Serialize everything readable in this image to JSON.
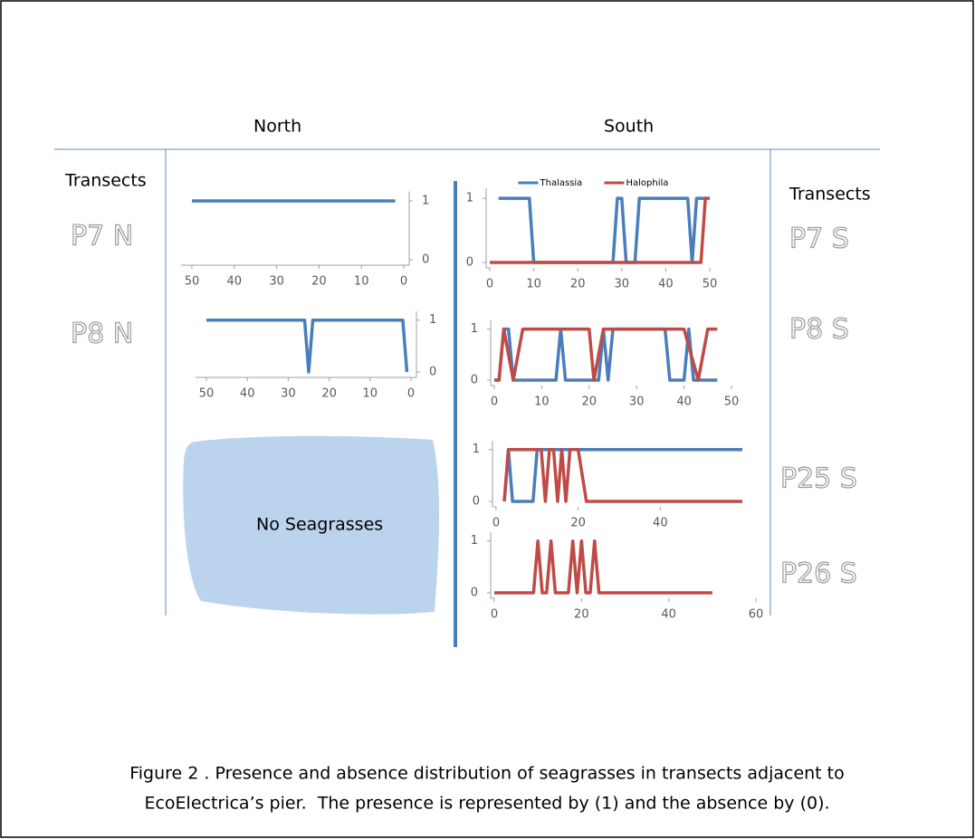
{
  "headers": {
    "north": "North",
    "south": "South"
  },
  "transects": [
    "Transects",
    "Transects"
  ],
  "no_data_label": "No Seagrasses",
  "caption": [
    "Figure 2 . Presence and absence distribution of seagrasses in transects adjacent to",
    "EcoElectrica’s pier.  The presence is represented by (1) and the absence by (0)."
  ],
  "chart_data": [
    {
      "type": "line",
      "title": "P7 N",
      "xlim": [
        50,
        0
      ],
      "xticks": [
        50,
        40,
        30,
        20,
        10,
        0
      ],
      "ylim": [
        0,
        1.1
      ],
      "yticks": [
        0,
        1
      ],
      "series": [
        {
          "color": "#4a7ebb",
          "x": [
            50,
            2
          ],
          "values": [
            1,
            1
          ]
        }
      ]
    },
    {
      "type": "line",
      "title": "P8 N",
      "xlim": [
        50,
        0
      ],
      "xticks": [
        50,
        40,
        30,
        20,
        10,
        0
      ],
      "ylim": [
        0,
        1.1
      ],
      "yticks": [
        0,
        1
      ],
      "series": [
        {
          "color": "#4a7ebb",
          "x": [
            50,
            26,
            25,
            24,
            2,
            1
          ],
          "values": [
            1,
            1,
            0,
            1,
            1,
            0
          ]
        }
      ]
    },
    {
      "type": "line",
      "title": "P7 S",
      "xlim": [
        0,
        50
      ],
      "xticks": [
        0,
        10,
        20,
        30,
        40,
        50
      ],
      "ylim": [
        0,
        1.1
      ],
      "yticks": [
        0,
        1
      ],
      "legend": "top",
      "series": [
        {
          "name": "Thalassia",
          "color": "#4a7ebb",
          "x": [
            2,
            9,
            10,
            28,
            29,
            30,
            31,
            33,
            34,
            45,
            46,
            47,
            49
          ],
          "values": [
            1,
            1,
            0,
            0,
            1,
            1,
            0,
            0,
            1,
            1,
            0,
            1,
            1
          ]
        },
        {
          "name": "Halophila",
          "color": "#be4b48",
          "x": [
            0,
            48,
            49,
            50
          ],
          "values": [
            0,
            0,
            1,
            1
          ]
        }
      ]
    },
    {
      "type": "line",
      "title": "P8 S",
      "xlim": [
        0,
        50
      ],
      "xticks": [
        0,
        10,
        20,
        30,
        40,
        50
      ],
      "ylim": [
        0,
        1.1
      ],
      "yticks": [
        0,
        1
      ],
      "series": [
        {
          "color": "#4a7ebb",
          "x": [
            0,
            1,
            2,
            3,
            4,
            13,
            14,
            15,
            22,
            23,
            24,
            25,
            36,
            37,
            40,
            41,
            42,
            47
          ],
          "values": [
            0,
            0,
            1,
            1,
            0,
            0,
            1,
            0,
            0,
            1,
            0,
            1,
            1,
            0,
            0,
            1,
            0,
            0
          ]
        },
        {
          "color": "#be4b48",
          "x": [
            0,
            1,
            2,
            4,
            6,
            20,
            21,
            23,
            40,
            43,
            45,
            47
          ],
          "values": [
            0,
            0,
            1,
            0,
            1,
            1,
            0,
            1,
            1,
            0,
            1,
            1
          ]
        }
      ]
    },
    {
      "type": "line",
      "title": "P25 S",
      "xlim": [
        0,
        60
      ],
      "xticks": [
        0,
        20,
        40
      ],
      "ylim": [
        0,
        1.1
      ],
      "yticks": [
        0,
        1
      ],
      "series": [
        {
          "color": "#4a7ebb",
          "x": [
            2,
            3,
            4,
            9,
            10,
            60
          ],
          "values": [
            0,
            1,
            0,
            0,
            1,
            1
          ]
        },
        {
          "color": "#be4b48",
          "x": [
            2,
            3,
            11,
            12,
            13,
            14,
            15,
            16,
            17,
            18,
            20,
            22,
            60
          ],
          "values": [
            0,
            1,
            1,
            0,
            1,
            1,
            0,
            1,
            0,
            1,
            1,
            0,
            0
          ]
        }
      ]
    },
    {
      "type": "line",
      "title": "P26 S",
      "xlim": [
        0,
        60
      ],
      "xticks": [
        0,
        20,
        40,
        60
      ],
      "ylim": [
        0,
        1.1
      ],
      "yticks": [
        0,
        1
      ],
      "series": [
        {
          "color": "#be4b48",
          "x": [
            0,
            9,
            10,
            11,
            12,
            13,
            14,
            17,
            18,
            19,
            20,
            21,
            22,
            23,
            24,
            50
          ],
          "values": [
            0,
            0,
            1,
            0,
            0,
            1,
            0,
            0,
            1,
            0,
            1,
            0,
            0,
            1,
            0,
            0
          ]
        }
      ]
    }
  ]
}
